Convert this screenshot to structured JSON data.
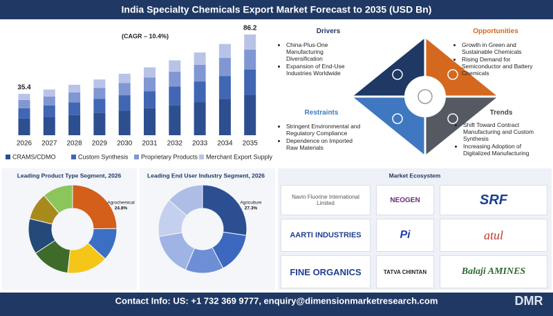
{
  "header": {
    "title": "India Specialty Chemicals Export Market Forecast to 2035 (USD Bn)"
  },
  "chart_data": [
    {
      "type": "stacked-bar",
      "categories": [
        "2026",
        "2027",
        "2028",
        "2029",
        "2030",
        "2031",
        "2032",
        "2033",
        "2034",
        "2035"
      ],
      "series": [
        {
          "name": "CRAMS/CDMO",
          "color": "#2e4f8f",
          "values": [
            14.2,
            15.6,
            17.3,
            19.1,
            21.0,
            23.2,
            25.6,
            28.3,
            31.2,
            34.5
          ]
        },
        {
          "name": "Custom Synthesis",
          "color": "#4166b3",
          "values": [
            8.9,
            9.8,
            10.8,
            11.9,
            13.2,
            14.5,
            16.0,
            17.7,
            19.5,
            21.6
          ]
        },
        {
          "name": "Proprietary Products",
          "color": "#8197d3",
          "values": [
            7.1,
            7.8,
            8.6,
            9.5,
            10.5,
            11.6,
            12.8,
            14.2,
            15.6,
            17.2
          ]
        },
        {
          "name": "Merchant Export Supply",
          "color": "#b8c3e7",
          "values": [
            5.2,
            5.9,
            6.5,
            7.2,
            7.9,
            8.8,
            9.7,
            10.6,
            11.8,
            12.9
          ]
        }
      ],
      "annotations": [
        "35.4",
        "86.2"
      ],
      "cagr": "(CAGR – 10.4%)"
    },
    {
      "type": "donut",
      "title": "Leading Product Type Segment, 2026",
      "categories": [
        "Agrochemical",
        null,
        null,
        null,
        null,
        null,
        null
      ],
      "values": [
        24.8,
        12,
        15,
        14,
        13,
        10,
        11.2
      ],
      "value_labels": [
        "24.8%",
        null,
        null,
        null,
        null,
        null,
        null
      ],
      "colors": [
        "#d35f1b",
        "#3a6fc4",
        "#f5c518",
        "#3f6b2a",
        "#234a78",
        "#a88a1c",
        "#8cc65a"
      ]
    },
    {
      "type": "donut",
      "title": "Leading End User Industry Segment, 2026",
      "categories": [
        "Agriculture",
        null,
        null,
        null,
        null,
        null
      ],
      "values": [
        27.3,
        15,
        14,
        16,
        14,
        13.7
      ],
      "value_labels": [
        "27.3%",
        null,
        null,
        null,
        null,
        null
      ],
      "colors": [
        "#2c4f91",
        "#3c68c0",
        "#6e8ed6",
        "#9fb4e4",
        "#c4d0ee",
        "#aebde6"
      ]
    }
  ],
  "quadrants": {
    "drivers": {
      "title": "Drivers",
      "items": [
        "China-Plus-One Manufacturing Diversification",
        "Expansion of End-Use Industries Worldwide"
      ]
    },
    "opportunities": {
      "title": "Opportunities",
      "items": [
        "Growth in Green and Sustainable Chemicals",
        "Rising Demand for Semiconductor and Battery Chemicals"
      ]
    },
    "restraints": {
      "title": "Restraints",
      "items": [
        "Stringent Environmental and Regulatory Compliance",
        "Dependence on Imported Raw Materials"
      ]
    },
    "trends": {
      "title": "Trends",
      "items": [
        "Shift Toward Contract Manufacturing and Custom Synthesis",
        "Increasing Adoption of Digitalized Manufacturing"
      ]
    }
  },
  "ecosystem": {
    "title": "Market Ecosystem",
    "companies": [
      "Navin Fluorine International Limited",
      "NEOGEN",
      "SRF",
      "AARTI INDUSTRIES",
      "Pi",
      "atul",
      "FINE ORGANICS",
      "TATVA CHINTAN",
      "Balaji AMINES"
    ]
  },
  "footer": {
    "contact": "Contact Info: US: +1 732 369 9777, enquiry@dimensionmarketresearch.com",
    "logo": "DMR"
  }
}
